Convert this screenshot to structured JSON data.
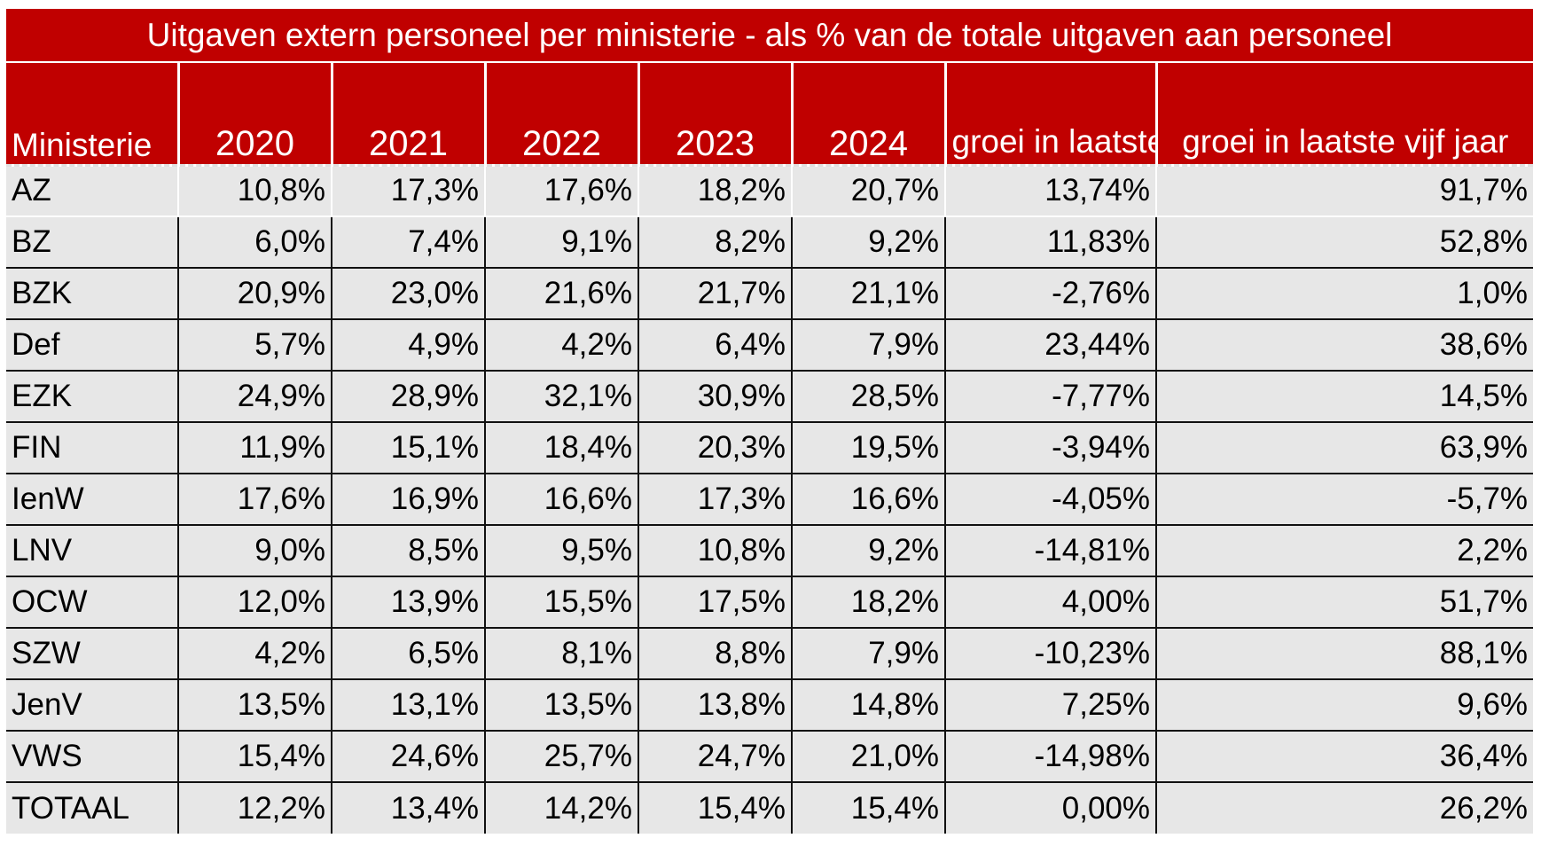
{
  "chart_data": {
    "type": "table",
    "title": "Uitgaven extern personeel per ministerie - als % van de totale uitgaven aan personeel",
    "columns": [
      "Ministerie",
      "2020",
      "2021",
      "2022",
      "2023",
      "2024",
      "groei in laatste jaar",
      "groei in laatste vijf jaar"
    ],
    "rows": [
      [
        "AZ",
        "10,8%",
        "17,3%",
        "17,6%",
        "18,2%",
        "20,7%",
        "13,74%",
        "91,7%"
      ],
      [
        "BZ",
        "6,0%",
        "7,4%",
        "9,1%",
        "8,2%",
        "9,2%",
        "11,83%",
        "52,8%"
      ],
      [
        "BZK",
        "20,9%",
        "23,0%",
        "21,6%",
        "21,7%",
        "21,1%",
        "-2,76%",
        "1,0%"
      ],
      [
        "Def",
        "5,7%",
        "4,9%",
        "4,2%",
        "6,4%",
        "7,9%",
        "23,44%",
        "38,6%"
      ],
      [
        "EZK",
        "24,9%",
        "28,9%",
        "32,1%",
        "30,9%",
        "28,5%",
        "-7,77%",
        "14,5%"
      ],
      [
        "FIN",
        "11,9%",
        "15,1%",
        "18,4%",
        "20,3%",
        "19,5%",
        "-3,94%",
        "63,9%"
      ],
      [
        "IenW",
        "17,6%",
        "16,9%",
        "16,6%",
        "17,3%",
        "16,6%",
        "-4,05%",
        "-5,7%"
      ],
      [
        "LNV",
        "9,0%",
        "8,5%",
        "9,5%",
        "10,8%",
        "9,2%",
        "-14,81%",
        "2,2%"
      ],
      [
        "OCW",
        "12,0%",
        "13,9%",
        "15,5%",
        "17,5%",
        "18,2%",
        "4,00%",
        "51,7%"
      ],
      [
        "SZW",
        "4,2%",
        "6,5%",
        "8,1%",
        "8,8%",
        "7,9%",
        "-10,23%",
        "88,1%"
      ],
      [
        "JenV",
        "13,5%",
        "13,1%",
        "13,5%",
        "13,8%",
        "14,8%",
        "7,25%",
        "9,6%"
      ],
      [
        "VWS",
        "15,4%",
        "24,6%",
        "25,7%",
        "24,7%",
        "21,0%",
        "-14,98%",
        "36,4%"
      ],
      [
        "TOTAAL",
        "12,2%",
        "13,4%",
        "14,2%",
        "15,4%",
        "15,4%",
        "0,00%",
        "26,2%"
      ]
    ]
  },
  "colors": {
    "header_background": "#c00000",
    "header_text": "#ffffff",
    "body_background": "#e7e7e7"
  }
}
